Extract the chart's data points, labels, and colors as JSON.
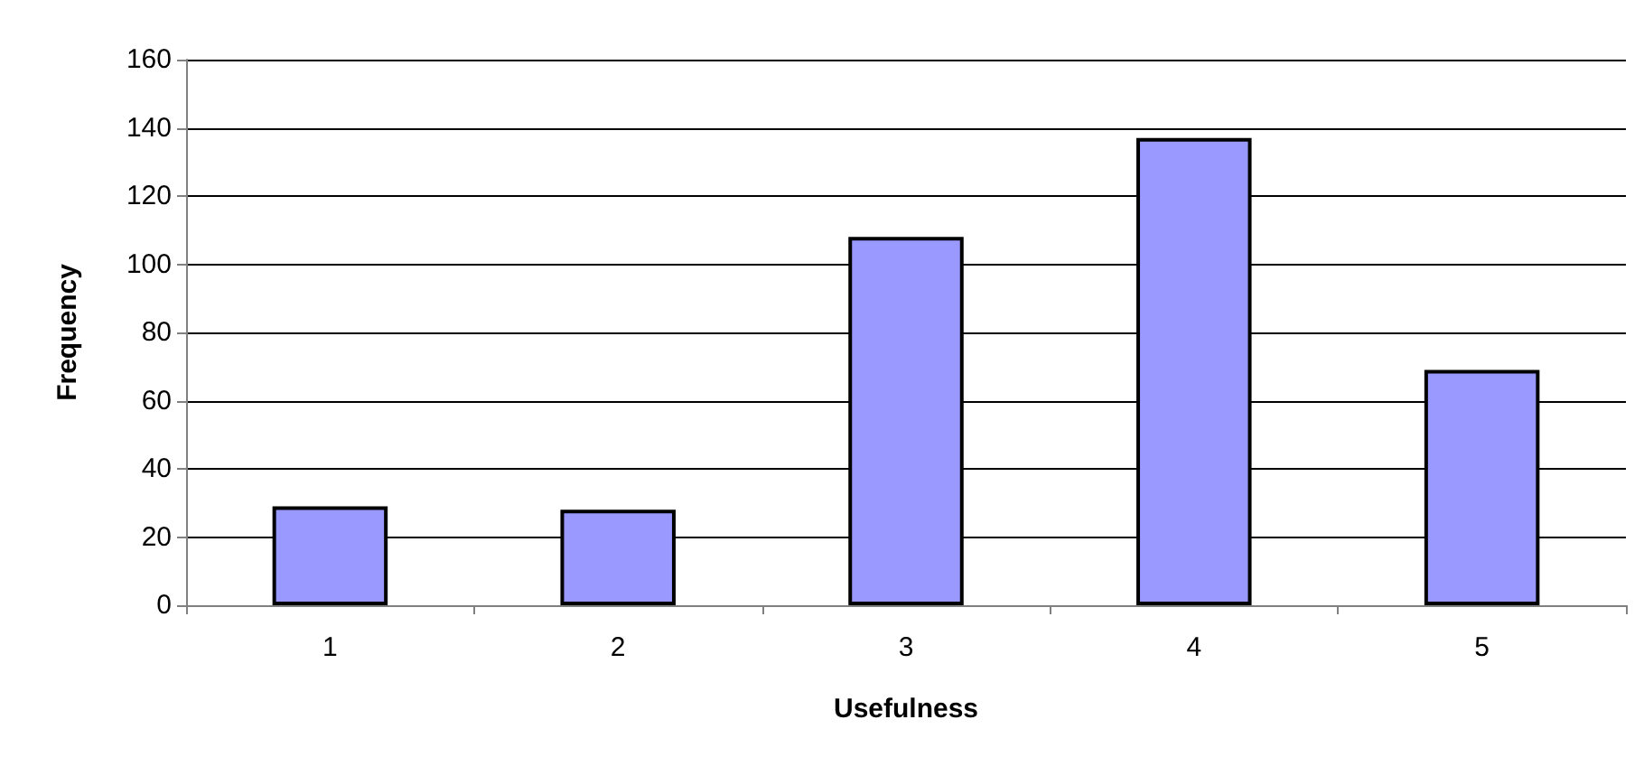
{
  "chart_data": {
    "type": "bar",
    "xlabel": "Usefulness",
    "ylabel": "Frequency",
    "categories": [
      "1",
      "2",
      "3",
      "4",
      "5"
    ],
    "values": [
      29,
      28,
      108,
      137,
      69
    ],
    "color": "#9999ff",
    "ylim": [
      0,
      160
    ],
    "yticks": [
      0,
      20,
      40,
      60,
      80,
      100,
      120,
      140,
      160
    ],
    "grid": "y"
  }
}
